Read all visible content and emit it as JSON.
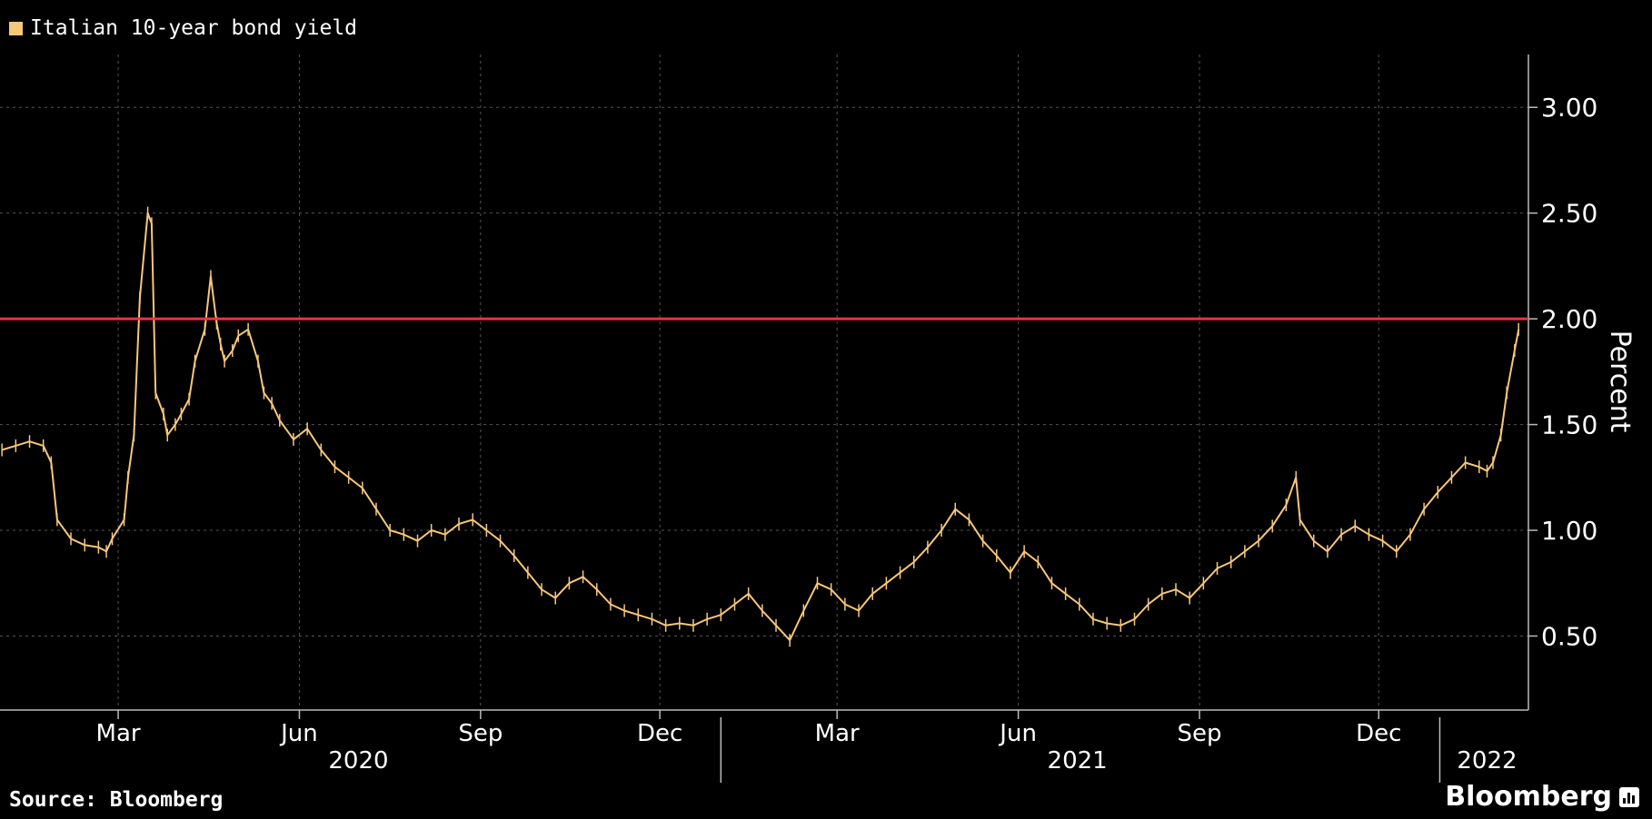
{
  "legend": {
    "label": "Italian 10-year bond yield"
  },
  "footer": {
    "source": "Source: Bloomberg",
    "brand": "Bloomberg"
  },
  "colors": {
    "background": "#000000",
    "series": "#f7c77a",
    "reference_line": "#e03a3a",
    "grid": "#555555",
    "text": "#ffffff"
  },
  "chart_data": {
    "type": "line",
    "title": "",
    "ylabel": "Percent",
    "ylim": [
      0.15,
      3.25
    ],
    "yticks": [
      0.5,
      1.0,
      1.5,
      2.0,
      2.5,
      3.0
    ],
    "ytick_labels": [
      "0.50",
      "1.00",
      "1.50",
      "2.00",
      "2.50",
      "3.00"
    ],
    "xlim": [
      "2020-01-01",
      "2022-02-15"
    ],
    "xticks": [
      {
        "date": "2020-03-01",
        "label": "Mar"
      },
      {
        "date": "2020-06-01",
        "label": "Jun"
      },
      {
        "date": "2020-09-01",
        "label": "Sep"
      },
      {
        "date": "2020-12-01",
        "label": "Dec"
      },
      {
        "date": "2021-03-01",
        "label": "Mar"
      },
      {
        "date": "2021-06-01",
        "label": "Jun"
      },
      {
        "date": "2021-09-01",
        "label": "Sep"
      },
      {
        "date": "2021-12-01",
        "label": "Dec"
      }
    ],
    "years": [
      {
        "label": "2020",
        "center": "2020-07-01"
      },
      {
        "label": "2021",
        "center": "2021-07-01"
      },
      {
        "label": "2022",
        "center": "2022-01-25"
      }
    ],
    "year_separators": [
      "2021-01-01",
      "2022-01-01"
    ],
    "grid": true,
    "legend_position": "top-left",
    "reference_line": {
      "value": 2.0,
      "color": "#e03a3a"
    },
    "series": [
      {
        "name": "Italian 10-year bond yield",
        "x": [
          "2020-01-02",
          "2020-01-09",
          "2020-01-16",
          "2020-01-23",
          "2020-01-27",
          "2020-01-30",
          "2020-02-06",
          "2020-02-13",
          "2020-02-20",
          "2020-02-24",
          "2020-02-27",
          "2020-03-04",
          "2020-03-06",
          "2020-03-09",
          "2020-03-12",
          "2020-03-16",
          "2020-03-18",
          "2020-03-20",
          "2020-03-24",
          "2020-03-26",
          "2020-03-30",
          "2020-04-02",
          "2020-04-06",
          "2020-04-09",
          "2020-04-14",
          "2020-04-17",
          "2020-04-20",
          "2020-04-22",
          "2020-04-24",
          "2020-04-28",
          "2020-05-01",
          "2020-05-06",
          "2020-05-11",
          "2020-05-14",
          "2020-05-18",
          "2020-05-22",
          "2020-05-29",
          "2020-06-05",
          "2020-06-12",
          "2020-06-19",
          "2020-06-26",
          "2020-07-03",
          "2020-07-10",
          "2020-07-17",
          "2020-07-24",
          "2020-07-31",
          "2020-08-07",
          "2020-08-14",
          "2020-08-21",
          "2020-08-28",
          "2020-09-04",
          "2020-09-11",
          "2020-09-18",
          "2020-09-25",
          "2020-10-02",
          "2020-10-09",
          "2020-10-16",
          "2020-10-23",
          "2020-10-30",
          "2020-11-06",
          "2020-11-13",
          "2020-11-20",
          "2020-11-27",
          "2020-12-04",
          "2020-12-11",
          "2020-12-18",
          "2020-12-25",
          "2021-01-01",
          "2021-01-08",
          "2021-01-15",
          "2021-01-22",
          "2021-01-29",
          "2021-02-05",
          "2021-02-12",
          "2021-02-19",
          "2021-02-26",
          "2021-03-05",
          "2021-03-12",
          "2021-03-19",
          "2021-03-26",
          "2021-04-02",
          "2021-04-09",
          "2021-04-16",
          "2021-04-23",
          "2021-04-30",
          "2021-05-07",
          "2021-05-14",
          "2021-05-21",
          "2021-05-28",
          "2021-06-04",
          "2021-06-11",
          "2021-06-18",
          "2021-06-25",
          "2021-07-02",
          "2021-07-09",
          "2021-07-16",
          "2021-07-23",
          "2021-07-30",
          "2021-08-06",
          "2021-08-13",
          "2021-08-20",
          "2021-08-27",
          "2021-09-03",
          "2021-09-10",
          "2021-09-17",
          "2021-09-24",
          "2021-10-01",
          "2021-10-08",
          "2021-10-15",
          "2021-10-20",
          "2021-10-22",
          "2021-10-29",
          "2021-11-05",
          "2021-11-12",
          "2021-11-19",
          "2021-11-26",
          "2021-12-03",
          "2021-12-10",
          "2021-12-17",
          "2021-12-24",
          "2021-12-31",
          "2022-01-07",
          "2022-01-14",
          "2022-01-21",
          "2022-01-25",
          "2022-01-28",
          "2022-02-01",
          "2022-02-04",
          "2022-02-08",
          "2022-02-10"
        ],
        "values": [
          1.38,
          1.4,
          1.42,
          1.4,
          1.32,
          1.05,
          0.96,
          0.93,
          0.92,
          0.9,
          0.96,
          1.05,
          1.25,
          1.45,
          2.1,
          2.5,
          2.45,
          1.65,
          1.55,
          1.45,
          1.5,
          1.55,
          1.62,
          1.8,
          1.95,
          2.2,
          1.98,
          1.88,
          1.8,
          1.85,
          1.92,
          1.95,
          1.8,
          1.65,
          1.6,
          1.52,
          1.43,
          1.48,
          1.38,
          1.3,
          1.25,
          1.2,
          1.1,
          1.0,
          0.98,
          0.95,
          1.0,
          0.98,
          1.03,
          1.05,
          1.0,
          0.95,
          0.88,
          0.8,
          0.72,
          0.68,
          0.75,
          0.78,
          0.72,
          0.65,
          0.62,
          0.6,
          0.58,
          0.55,
          0.56,
          0.55,
          0.58,
          0.6,
          0.65,
          0.7,
          0.62,
          0.55,
          0.48,
          0.62,
          0.75,
          0.72,
          0.65,
          0.62,
          0.7,
          0.75,
          0.8,
          0.85,
          0.92,
          1.0,
          1.1,
          1.05,
          0.95,
          0.88,
          0.8,
          0.9,
          0.85,
          0.75,
          0.7,
          0.65,
          0.58,
          0.56,
          0.55,
          0.58,
          0.65,
          0.7,
          0.72,
          0.68,
          0.75,
          0.82,
          0.85,
          0.9,
          0.95,
          1.02,
          1.12,
          1.25,
          1.05,
          0.95,
          0.9,
          0.98,
          1.02,
          0.98,
          0.95,
          0.9,
          0.98,
          1.1,
          1.18,
          1.25,
          1.32,
          1.3,
          1.28,
          1.32,
          1.45,
          1.65,
          1.85,
          1.95
        ]
      }
    ]
  }
}
